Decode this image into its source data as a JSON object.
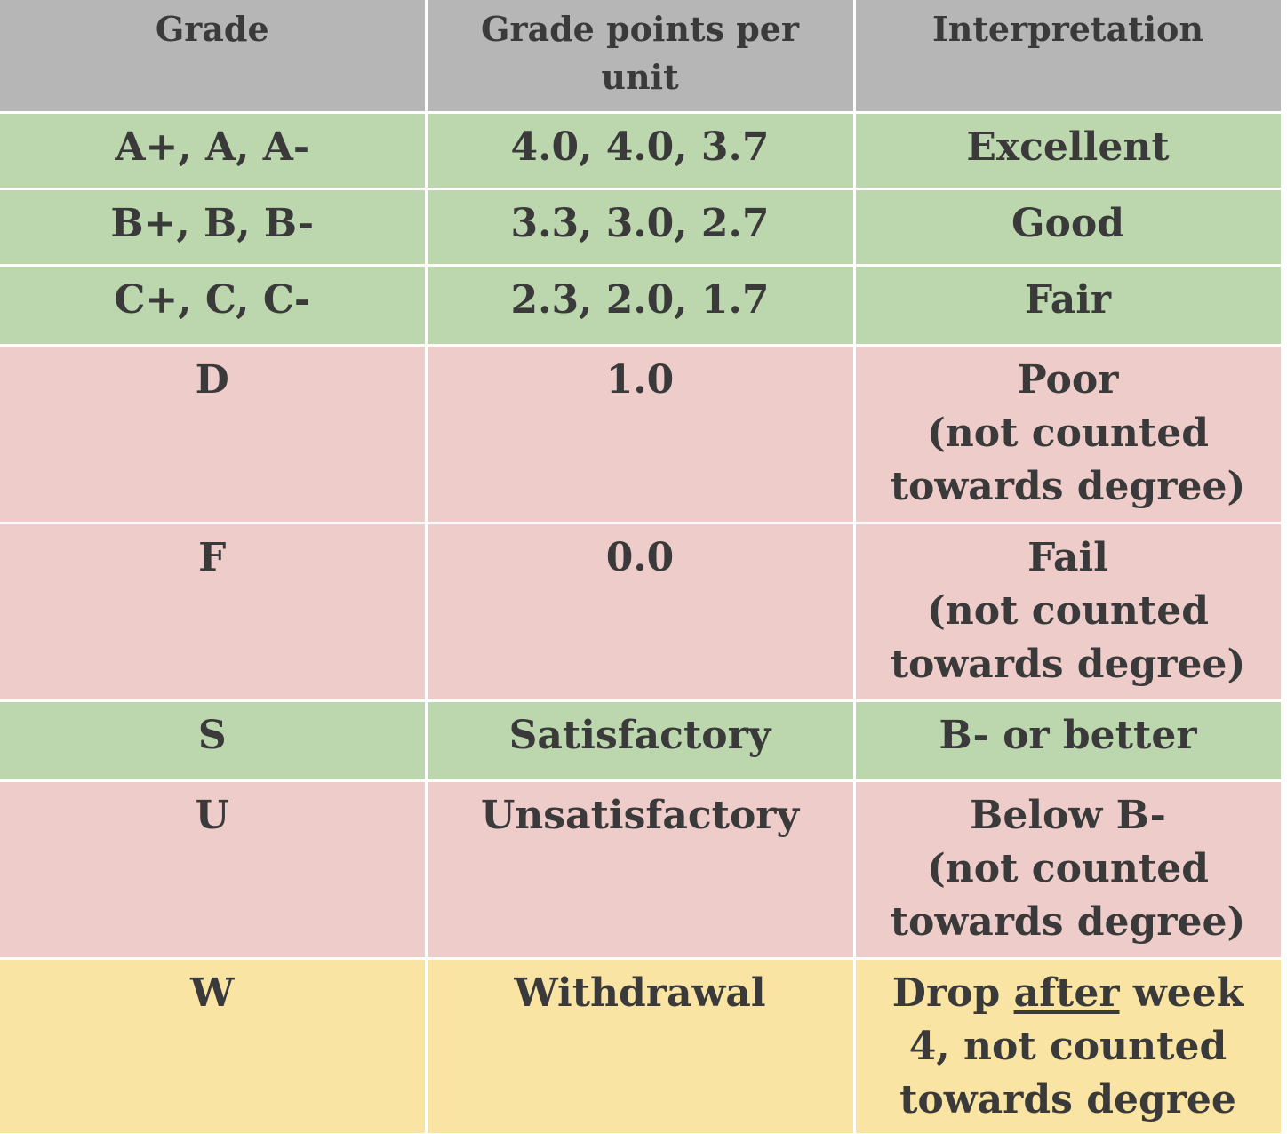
{
  "table": {
    "headers": [
      "Grade",
      "Grade points per unit",
      "Interpretation"
    ],
    "rows": [
      {
        "grade": "A+, A, A-",
        "points": "4.0, 4.0, 3.7",
        "interpretation": [
          "Excellent"
        ],
        "color": "#bcd6ae"
      },
      {
        "grade": "B+, B, B-",
        "points": "3.3, 3.0, 2.7",
        "interpretation": [
          "Good"
        ],
        "color": "#bcd6ae"
      },
      {
        "grade": "C+, C, C-",
        "points": "2.3, 2.0, 1.7",
        "interpretation": [
          "Fair"
        ],
        "color": "#bcd6ae"
      },
      {
        "grade": "D",
        "points": "1.0",
        "interpretation": [
          "Poor",
          "(not counted",
          "towards degree)"
        ],
        "color": "#eeccca"
      },
      {
        "grade": "F",
        "points": "0.0",
        "interpretation": [
          "Fail",
          "(not counted",
          "towards degree)"
        ],
        "color": "#eeccca"
      },
      {
        "grade": "S",
        "points": "Satisfactory",
        "interpretation": [
          "B- or better"
        ],
        "color": "#bcd6ae"
      },
      {
        "grade": "U",
        "points": "Unsatisfactory",
        "interpretation": [
          "Below B-",
          "(not counted",
          "towards degree)"
        ],
        "color": "#eeccca"
      },
      {
        "grade": "W",
        "points": "Withdrawal",
        "interpretation_parts": {
          "pre": "Drop ",
          "emph": "after",
          "post": " week"
        },
        "interpretation": [
          "4, not counted",
          "towards degree"
        ],
        "color": "#f9e4a3"
      }
    ]
  }
}
